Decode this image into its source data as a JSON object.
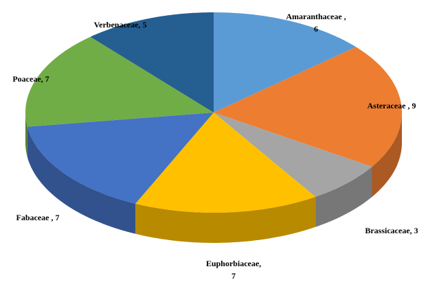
{
  "chart_data": {
    "type": "pie3d",
    "categories": [
      "Amaranthaceae ,",
      "Asteraceae ,",
      "Brassicaceae,",
      "Euphorbiaceae,",
      "Fabaceae ,",
      "Poaceae,",
      "Verbenaceae,"
    ],
    "values": [
      6,
      9,
      3,
      7,
      7,
      7,
      5
    ],
    "colors": [
      "#5b9bd5",
      "#ed7d31",
      "#a5a5a5",
      "#ffc000",
      "#4472c4",
      "#70ad47",
      "#255e91"
    ]
  }
}
